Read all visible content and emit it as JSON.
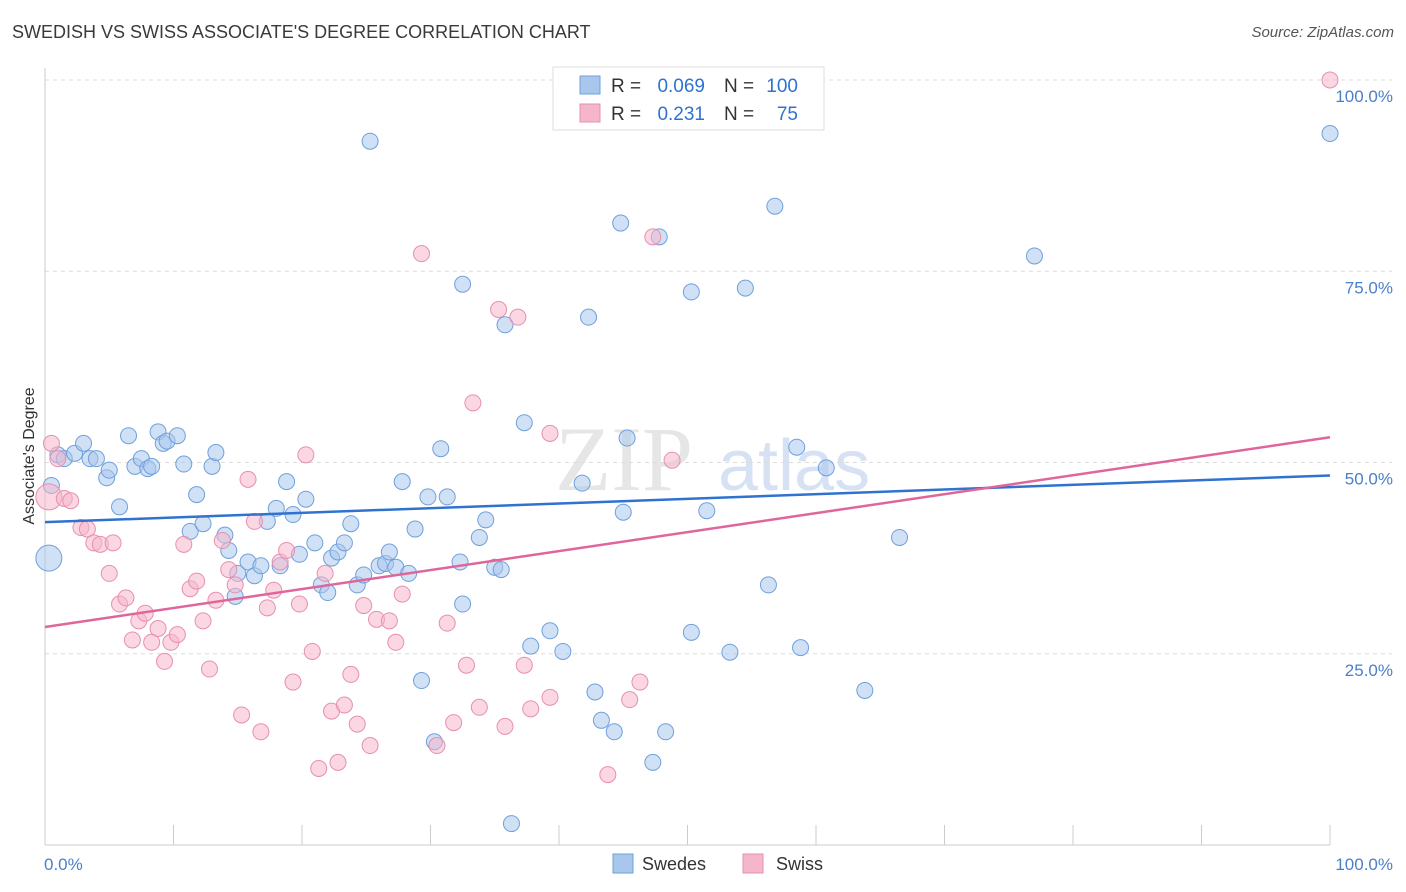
{
  "header": {
    "title": "SWEDISH VS SWISS ASSOCIATE'S DEGREE CORRELATION CHART",
    "source": "Source: ZipAtlas.com"
  },
  "watermark": {
    "zip": "ZIP",
    "atlas": "atlas"
  },
  "legend_top": {
    "rows": [
      {
        "r_label": "R =",
        "r_value": "0.069",
        "n_label": "N =",
        "n_value": "100"
      },
      {
        "r_label": "R =",
        "r_value": "0.231",
        "n_label": "N =",
        "n_value": "75"
      }
    ]
  },
  "colors": {
    "swedes_fill": "#a9c6ec",
    "swedes_stroke": "#6fa0dc",
    "swedes_line": "#2f72d0",
    "swiss_fill": "#f5b6cb",
    "swiss_stroke": "#e88fae",
    "swiss_line": "#e0669a",
    "tick_text": "#4a7fcb"
  },
  "chart_data": {
    "type": "scatter",
    "title": "SWEDISH VS SWISS ASSOCIATE'S DEGREE CORRELATION CHART",
    "ylabel": "Associate's Degree",
    "x_tick_labels": [
      "0.0%",
      "100.0%"
    ],
    "y_tick_labels": [
      "100.0%",
      "75.0%",
      "50.0%",
      "25.0%"
    ],
    "y_ticks": [
      100,
      75,
      50,
      25
    ],
    "xlim": [
      0,
      100
    ],
    "ylim": [
      0,
      100
    ],
    "grid": true,
    "legend": [
      "Swedes",
      "Swiss"
    ],
    "series": [
      {
        "name": "Swedes",
        "R": 0.069,
        "N": 100,
        "trend": [
          [
            0,
            42.2
          ],
          [
            100,
            48.3
          ]
        ],
        "points": [
          [
            0.3,
            37.5
          ],
          [
            0.5,
            47.0
          ],
          [
            1.0,
            51.0
          ],
          [
            1.5,
            50.5
          ],
          [
            2.3,
            51.2
          ],
          [
            3.0,
            52.5
          ],
          [
            3.5,
            50.5
          ],
          [
            4.0,
            50.5
          ],
          [
            4.8,
            48.0
          ],
          [
            5.0,
            49.0
          ],
          [
            5.8,
            44.2
          ],
          [
            6.5,
            53.5
          ],
          [
            7.0,
            49.5
          ],
          [
            7.5,
            50.5
          ],
          [
            8.0,
            49.2
          ],
          [
            8.3,
            49.5
          ],
          [
            8.8,
            54.0
          ],
          [
            9.2,
            52.5
          ],
          [
            9.5,
            52.8
          ],
          [
            10.3,
            53.5
          ],
          [
            10.8,
            49.8
          ],
          [
            11.3,
            41.0
          ],
          [
            11.8,
            45.8
          ],
          [
            12.3,
            42.0
          ],
          [
            13.0,
            49.5
          ],
          [
            13.3,
            51.3
          ],
          [
            14.0,
            40.5
          ],
          [
            14.3,
            38.5
          ],
          [
            14.8,
            32.5
          ],
          [
            15.0,
            35.5
          ],
          [
            15.8,
            37.0
          ],
          [
            16.3,
            35.2
          ],
          [
            16.8,
            36.5
          ],
          [
            17.3,
            42.3
          ],
          [
            18.0,
            44.0
          ],
          [
            18.3,
            36.5
          ],
          [
            18.8,
            47.5
          ],
          [
            19.3,
            43.2
          ],
          [
            19.8,
            38.0
          ],
          [
            20.3,
            45.2
          ],
          [
            21.0,
            39.5
          ],
          [
            21.5,
            34.0
          ],
          [
            22.0,
            33.0
          ],
          [
            22.3,
            37.5
          ],
          [
            22.8,
            38.3
          ],
          [
            23.3,
            39.5
          ],
          [
            23.8,
            42.0
          ],
          [
            24.3,
            34.0
          ],
          [
            24.8,
            35.3
          ],
          [
            25.3,
            92.0
          ],
          [
            26.0,
            36.5
          ],
          [
            26.5,
            36.8
          ],
          [
            26.8,
            38.3
          ],
          [
            27.3,
            36.3
          ],
          [
            27.8,
            47.5
          ],
          [
            28.3,
            35.5
          ],
          [
            28.8,
            41.3
          ],
          [
            29.3,
            21.5
          ],
          [
            29.8,
            45.5
          ],
          [
            30.3,
            13.5
          ],
          [
            30.8,
            51.8
          ],
          [
            31.3,
            45.5
          ],
          [
            32.3,
            37.0
          ],
          [
            32.5,
            31.5
          ],
          [
            32.5,
            73.3
          ],
          [
            33.8,
            40.2
          ],
          [
            34.3,
            42.5
          ],
          [
            35.0,
            36.3
          ],
          [
            35.5,
            36.0
          ],
          [
            35.8,
            68.0
          ],
          [
            36.3,
            2.8
          ],
          [
            37.3,
            55.2
          ],
          [
            37.8,
            26.0
          ],
          [
            39.3,
            28.0
          ],
          [
            40.3,
            25.3
          ],
          [
            41.8,
            47.3
          ],
          [
            42.3,
            69.0
          ],
          [
            42.8,
            20.0
          ],
          [
            43.3,
            16.3
          ],
          [
            44.3,
            14.8
          ],
          [
            44.8,
            81.3
          ],
          [
            45.0,
            43.5
          ],
          [
            45.3,
            53.2
          ],
          [
            47.3,
            10.8
          ],
          [
            47.8,
            79.5
          ],
          [
            48.3,
            14.8
          ],
          [
            50.3,
            72.3
          ],
          [
            50.3,
            27.8
          ],
          [
            51.5,
            43.7
          ],
          [
            53.3,
            25.2
          ],
          [
            54.5,
            72.8
          ],
          [
            56.3,
            34.0
          ],
          [
            56.8,
            83.5
          ],
          [
            58.5,
            52.0
          ],
          [
            58.8,
            25.8
          ],
          [
            60.8,
            49.3
          ],
          [
            63.8,
            20.2
          ],
          [
            66.5,
            40.2
          ],
          [
            77.0,
            77.0
          ],
          [
            100.0,
            93.0
          ]
        ]
      },
      {
        "name": "Swiss",
        "R": 0.231,
        "N": 75,
        "trend": [
          [
            0,
            28.5
          ],
          [
            100,
            53.3
          ]
        ],
        "points": [
          [
            0.3,
            45.5
          ],
          [
            0.5,
            52.5
          ],
          [
            1.0,
            50.5
          ],
          [
            1.5,
            45.3
          ],
          [
            2.0,
            45.0
          ],
          [
            2.8,
            41.5
          ],
          [
            3.3,
            41.3
          ],
          [
            3.8,
            39.5
          ],
          [
            4.3,
            39.3
          ],
          [
            5.0,
            35.5
          ],
          [
            5.3,
            39.5
          ],
          [
            5.8,
            31.5
          ],
          [
            6.3,
            32.3
          ],
          [
            6.8,
            26.8
          ],
          [
            7.3,
            29.3
          ],
          [
            7.8,
            30.3
          ],
          [
            8.3,
            26.5
          ],
          [
            8.8,
            28.3
          ],
          [
            9.3,
            24.0
          ],
          [
            9.8,
            26.5
          ],
          [
            10.3,
            27.5
          ],
          [
            10.8,
            39.3
          ],
          [
            11.3,
            33.5
          ],
          [
            11.8,
            34.5
          ],
          [
            12.3,
            29.3
          ],
          [
            12.8,
            23.0
          ],
          [
            13.3,
            32.0
          ],
          [
            13.8,
            39.8
          ],
          [
            14.3,
            36.0
          ],
          [
            14.8,
            34.0
          ],
          [
            15.3,
            17.0
          ],
          [
            15.8,
            47.8
          ],
          [
            16.3,
            42.3
          ],
          [
            16.8,
            14.8
          ],
          [
            17.3,
            31.0
          ],
          [
            17.8,
            33.3
          ],
          [
            18.3,
            37.0
          ],
          [
            18.8,
            38.5
          ],
          [
            19.3,
            21.3
          ],
          [
            19.8,
            31.5
          ],
          [
            20.3,
            51.0
          ],
          [
            20.8,
            25.3
          ],
          [
            21.3,
            10.0
          ],
          [
            21.8,
            35.5
          ],
          [
            22.3,
            17.5
          ],
          [
            22.8,
            10.8
          ],
          [
            23.3,
            18.3
          ],
          [
            23.8,
            22.3
          ],
          [
            24.3,
            15.8
          ],
          [
            24.8,
            31.3
          ],
          [
            25.3,
            13.0
          ],
          [
            25.8,
            29.5
          ],
          [
            26.8,
            29.3
          ],
          [
            27.3,
            26.5
          ],
          [
            27.8,
            32.8
          ],
          [
            29.3,
            77.3
          ],
          [
            30.5,
            13.0
          ],
          [
            31.3,
            29.0
          ],
          [
            31.8,
            16.0
          ],
          [
            32.8,
            23.5
          ],
          [
            33.3,
            57.8
          ],
          [
            33.8,
            18.0
          ],
          [
            35.3,
            70.0
          ],
          [
            35.8,
            15.5
          ],
          [
            36.8,
            69.0
          ],
          [
            37.3,
            23.5
          ],
          [
            37.8,
            17.8
          ],
          [
            39.3,
            53.8
          ],
          [
            39.3,
            19.3
          ],
          [
            43.8,
            9.2
          ],
          [
            45.5,
            19.0
          ],
          [
            46.3,
            21.3
          ],
          [
            47.3,
            79.5
          ],
          [
            48.8,
            50.3
          ],
          [
            100.0,
            100.0
          ]
        ]
      }
    ]
  },
  "legend_bottom": {
    "swedes": "Swedes",
    "swiss": "Swiss"
  }
}
